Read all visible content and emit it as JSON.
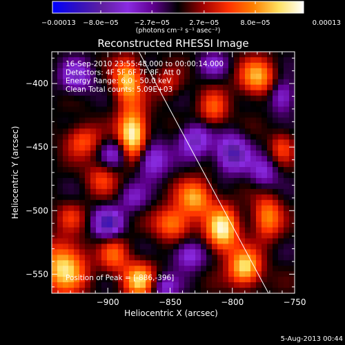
{
  "chart_data": {
    "type": "heatmap",
    "title": "Reconstructed RHESSI Image",
    "xlabel": "Heliocentric X (arcsec)",
    "ylabel": "Heliocentric Y (arcsec)",
    "xlim": [
      -945,
      -750
    ],
    "ylim": [
      -565,
      -375
    ],
    "xticks": [
      -900,
      -850,
      -800,
      -750
    ],
    "xtick_labels": [
      "−900",
      "−850",
      "−800",
      "−750"
    ],
    "yticks": [
      -400,
      -450,
      -500,
      -550
    ],
    "ytick_labels": [
      "−400",
      "−450",
      "−500",
      "−550"
    ],
    "colorbar": {
      "range": [
        -0.00013,
        0.00013
      ],
      "tick_values": [
        -0.00013,
        -8e-05,
        -2.7e-05,
        2.7e-05,
        8e-05,
        0.00013
      ],
      "tick_labels": [
        "−0.00013",
        "−8.0e−05",
        "−2.7e−05",
        "2.7e−05",
        "8.0e−05",
        "0.00013"
      ],
      "units": "(photons cm⁻² s⁻¹ asec⁻²)",
      "colors": [
        "#0000ff",
        "#3010c0",
        "#6020a0",
        "#8a2be2",
        "#600090",
        "#000000",
        "#a00000",
        "#ff3000",
        "#ff8000",
        "#ffe060",
        "#ffffff"
      ]
    },
    "info_lines": [
      "16-Sep-2010 23:55:48.000 to 00:00:14.000",
      "Detectors: 4F 5F 6F 7F 8F, Att 0",
      "Energy Range: 6.0 - 50.0 keV",
      "Clean    Total counts: 5.09E+03"
    ],
    "peak_label": "Position of Peak = [-886,-396]",
    "peak": {
      "x": -886,
      "y": -396
    },
    "limb_line": [
      {
        "x": -875,
        "y": -375
      },
      {
        "x": -771,
        "y": -565
      }
    ],
    "sources": [
      {
        "x": -880,
        "y": -440,
        "value": 0.00013,
        "sx": 8,
        "sy": 14
      },
      {
        "x": -884,
        "y": -398,
        "value": 0.0001,
        "sx": 8,
        "sy": 12
      },
      {
        "x": -920,
        "y": -445,
        "value": 6e-05,
        "sx": 10,
        "sy": 9
      },
      {
        "x": -905,
        "y": -475,
        "value": 5e-05,
        "sx": 9,
        "sy": 9
      },
      {
        "x": -935,
        "y": -545,
        "value": 0.00011,
        "sx": 12,
        "sy": 14
      },
      {
        "x": -895,
        "y": -535,
        "value": 6e-05,
        "sx": 8,
        "sy": 10
      },
      {
        "x": -875,
        "y": -555,
        "value": 0.0001,
        "sx": 9,
        "sy": 10
      },
      {
        "x": -830,
        "y": -490,
        "value": 9e-05,
        "sx": 10,
        "sy": 10
      },
      {
        "x": -848,
        "y": -510,
        "value": 8e-05,
        "sx": 10,
        "sy": 9
      },
      {
        "x": -808,
        "y": -515,
        "value": 0.00012,
        "sx": 9,
        "sy": 12
      },
      {
        "x": -815,
        "y": -420,
        "value": 6e-05,
        "sx": 8,
        "sy": 10
      },
      {
        "x": -852,
        "y": -400,
        "value": 4e-05,
        "sx": 8,
        "sy": 8
      },
      {
        "x": -780,
        "y": -395,
        "value": 9e-05,
        "sx": 10,
        "sy": 10
      },
      {
        "x": -772,
        "y": -505,
        "value": 8e-05,
        "sx": 8,
        "sy": 12
      },
      {
        "x": -790,
        "y": -545,
        "value": 0.00011,
        "sx": 9,
        "sy": 10
      },
      {
        "x": -760,
        "y": -450,
        "value": 5e-05,
        "sx": 7,
        "sy": 9
      },
      {
        "x": -930,
        "y": -505,
        "value": 4e-05,
        "sx": 8,
        "sy": 8
      },
      {
        "x": -925,
        "y": -395,
        "value": -6e-05,
        "sx": 9,
        "sy": 9
      },
      {
        "x": -895,
        "y": -455,
        "value": -5e-05,
        "sx": 8,
        "sy": 8
      },
      {
        "x": -865,
        "y": -460,
        "value": -7e-05,
        "sx": 9,
        "sy": 10
      },
      {
        "x": -900,
        "y": -510,
        "value": -9e-05,
        "sx": 8,
        "sy": 8
      },
      {
        "x": -830,
        "y": -445,
        "value": -7e-05,
        "sx": 9,
        "sy": 9
      },
      {
        "x": -800,
        "y": -455,
        "value": -9e-05,
        "sx": 9,
        "sy": 10
      },
      {
        "x": -760,
        "y": -410,
        "value": -6e-05,
        "sx": 7,
        "sy": 9
      },
      {
        "x": -835,
        "y": -535,
        "value": -6e-05,
        "sx": 9,
        "sy": 8
      },
      {
        "x": -775,
        "y": -470,
        "value": -5e-05,
        "sx": 8,
        "sy": 9
      },
      {
        "x": -855,
        "y": -560,
        "value": -5e-05,
        "sx": 8,
        "sy": 7
      },
      {
        "x": -880,
        "y": -490,
        "value": -4e-05,
        "sx": 8,
        "sy": 8
      },
      {
        "x": -815,
        "y": -385,
        "value": -4e-05,
        "sx": 8,
        "sy": 7
      }
    ]
  },
  "footer": {
    "date": "5-Aug-2013 00:44"
  }
}
